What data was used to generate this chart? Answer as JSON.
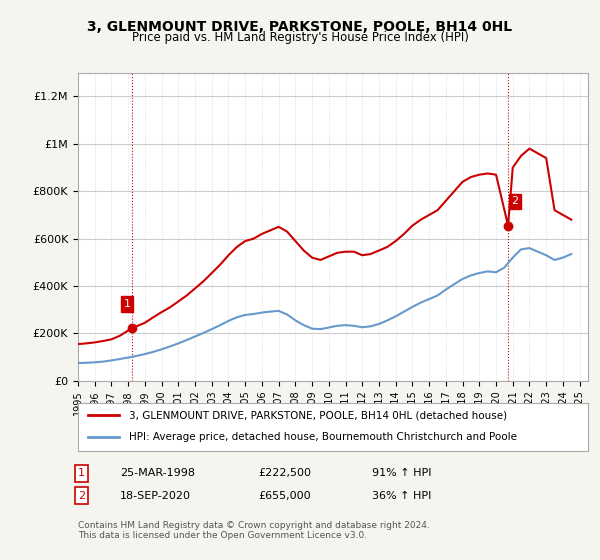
{
  "title": "3, GLENMOUNT DRIVE, PARKSTONE, POOLE, BH14 0HL",
  "subtitle": "Price paid vs. HM Land Registry's House Price Index (HPI)",
  "legend_line1": "3, GLENMOUNT DRIVE, PARKSTONE, POOLE, BH14 0HL (detached house)",
  "legend_line2": "HPI: Average price, detached house, Bournemouth Christchurch and Poole",
  "annotation1_label": "1",
  "annotation1_date": "25-MAR-1998",
  "annotation1_price": "£222,500",
  "annotation1_hpi": "91% ↑ HPI",
  "annotation2_label": "2",
  "annotation2_date": "18-SEP-2020",
  "annotation2_price": "£655,000",
  "annotation2_hpi": "36% ↑ HPI",
  "footer": "Contains HM Land Registry data © Crown copyright and database right 2024.\nThis data is licensed under the Open Government Licence v3.0.",
  "red_color": "#cc0000",
  "blue_color": "#6699cc",
  "background_color": "#f5f5f0",
  "plot_background": "#ffffff",
  "grid_color": "#cccccc",
  "ylim": [
    0,
    1300000
  ],
  "yticks": [
    0,
    200000,
    400000,
    600000,
    800000,
    1000000,
    1200000
  ],
  "sale1_x": 1998.23,
  "sale1_y": 222500,
  "sale2_x": 2020.72,
  "sale2_y": 655000,
  "red_x": [
    1995,
    1995.5,
    1996,
    1996.5,
    1997,
    1997.5,
    1998.23,
    1998.5,
    1999,
    1999.5,
    2000,
    2000.5,
    2001,
    2001.5,
    2002,
    2002.5,
    2003,
    2003.5,
    2004,
    2004.5,
    2005,
    2005.5,
    2006,
    2006.5,
    2007,
    2007.5,
    2008,
    2008.5,
    2009,
    2009.5,
    2010,
    2010.5,
    2011,
    2011.5,
    2012,
    2012.5,
    2013,
    2013.5,
    2014,
    2014.5,
    2015,
    2015.5,
    2016,
    2016.5,
    2017,
    2017.5,
    2018,
    2018.5,
    2019,
    2019.5,
    2020,
    2020.72,
    2021,
    2021.5,
    2022,
    2022.5,
    2023,
    2023.5,
    2024,
    2024.5
  ],
  "red_y": [
    155000,
    158000,
    162000,
    168000,
    175000,
    190000,
    222500,
    230000,
    245000,
    268000,
    290000,
    310000,
    335000,
    360000,
    390000,
    420000,
    455000,
    490000,
    530000,
    565000,
    590000,
    600000,
    620000,
    635000,
    650000,
    630000,
    590000,
    550000,
    520000,
    510000,
    525000,
    540000,
    545000,
    545000,
    530000,
    535000,
    550000,
    565000,
    590000,
    620000,
    655000,
    680000,
    700000,
    720000,
    760000,
    800000,
    840000,
    860000,
    870000,
    875000,
    870000,
    655000,
    900000,
    950000,
    980000,
    960000,
    940000,
    720000,
    700000,
    680000
  ],
  "blue_x": [
    1995,
    1995.5,
    1996,
    1996.5,
    1997,
    1997.5,
    1998,
    1998.5,
    1999,
    1999.5,
    2000,
    2000.5,
    2001,
    2001.5,
    2002,
    2002.5,
    2003,
    2003.5,
    2004,
    2004.5,
    2005,
    2005.5,
    2006,
    2006.5,
    2007,
    2007.5,
    2008,
    2008.5,
    2009,
    2009.5,
    2010,
    2010.5,
    2011,
    2011.5,
    2012,
    2012.5,
    2013,
    2013.5,
    2014,
    2014.5,
    2015,
    2015.5,
    2016,
    2016.5,
    2017,
    2017.5,
    2018,
    2018.5,
    2019,
    2019.5,
    2020,
    2020.5,
    2021,
    2021.5,
    2022,
    2022.5,
    2023,
    2023.5,
    2024,
    2024.5
  ],
  "blue_y": [
    75000,
    76000,
    78000,
    81000,
    86000,
    92000,
    98000,
    105000,
    113000,
    122000,
    133000,
    145000,
    158000,
    172000,
    187000,
    202000,
    218000,
    235000,
    253000,
    268000,
    278000,
    282000,
    288000,
    292000,
    295000,
    280000,
    255000,
    235000,
    220000,
    218000,
    225000,
    232000,
    235000,
    232000,
    226000,
    230000,
    240000,
    255000,
    272000,
    292000,
    312000,
    330000,
    345000,
    360000,
    385000,
    408000,
    430000,
    445000,
    455000,
    462000,
    458000,
    478000,
    520000,
    555000,
    560000,
    545000,
    530000,
    510000,
    520000,
    535000
  ],
  "xtick_years": [
    1995,
    1996,
    1997,
    1998,
    1999,
    2000,
    2001,
    2002,
    2003,
    2004,
    2005,
    2006,
    2007,
    2008,
    2009,
    2010,
    2011,
    2012,
    2013,
    2014,
    2015,
    2016,
    2017,
    2018,
    2019,
    2020,
    2021,
    2022,
    2023,
    2024,
    2025
  ]
}
